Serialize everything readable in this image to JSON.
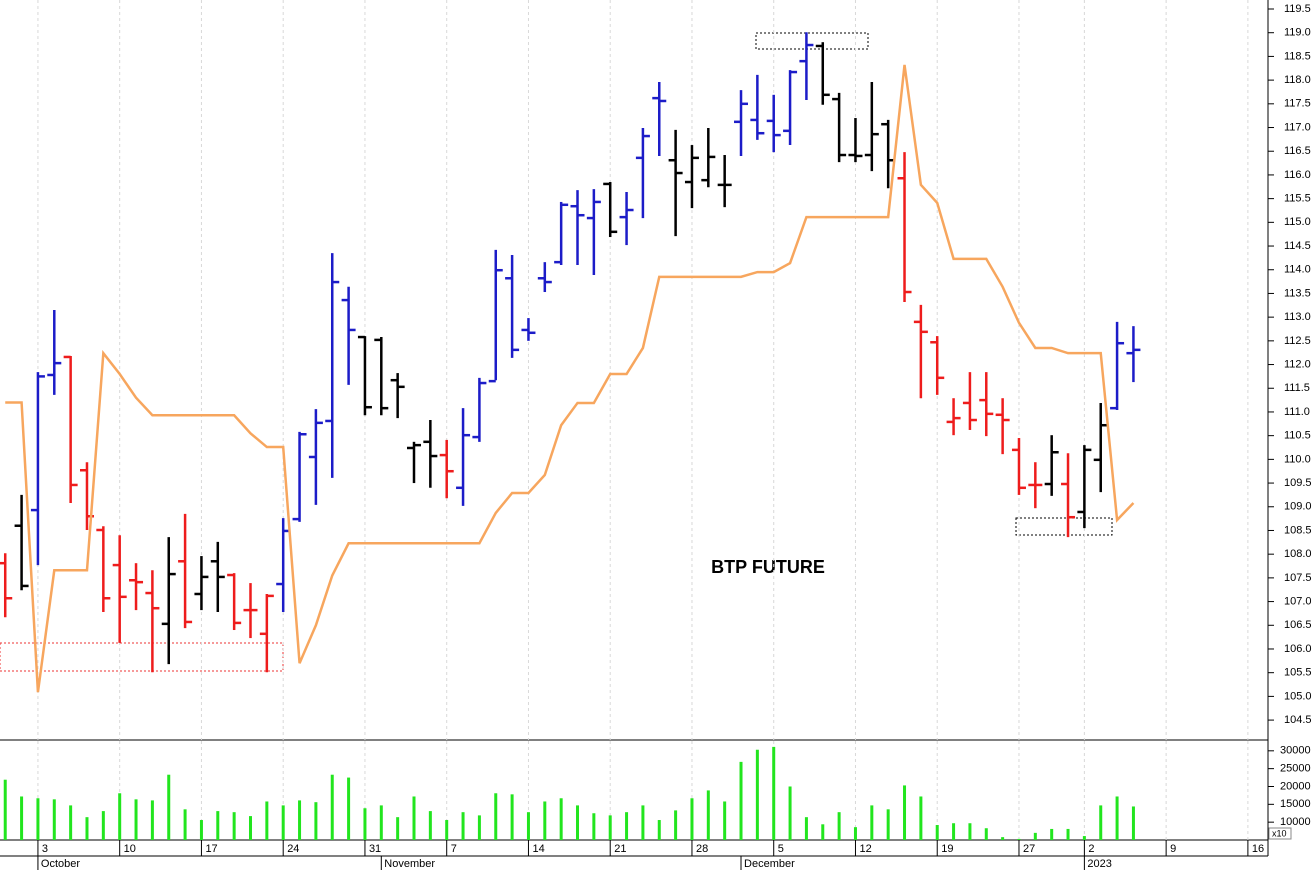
{
  "chart_data": [
    {
      "type": "ohlc",
      "title": "BTP FUTURE",
      "x": [
        -2,
        -1,
        0,
        1,
        2,
        3,
        4,
        5,
        6,
        7,
        8,
        9,
        10,
        11,
        12,
        13,
        14,
        15,
        16,
        17,
        18,
        19,
        20,
        21,
        22,
        23,
        24,
        25,
        26,
        27,
        28,
        29,
        30,
        31,
        32,
        33,
        34,
        35,
        36,
        37,
        38,
        39,
        40,
        41,
        42,
        43,
        44,
        45,
        46,
        47,
        48,
        49,
        50,
        51,
        52,
        53,
        54,
        55,
        56,
        57,
        58,
        59,
        60,
        61,
        62,
        63,
        64,
        65,
        66,
        67
      ],
      "open": [
        107.81,
        108.6,
        108.93,
        111.78,
        112.16,
        109.77,
        108.51,
        107.77,
        107.45,
        107.18,
        106.53,
        107.85,
        107.16,
        107.85,
        107.56,
        106.82,
        106.32,
        107.37,
        108.74,
        110.05,
        110.81,
        113.36,
        112.58,
        112.52,
        111.67,
        110.24,
        110.37,
        110.09,
        109.4,
        110.47,
        111.65,
        113.82,
        112.73,
        113.82,
        114.16,
        115.34,
        115.09,
        115.81,
        115.11,
        116.36,
        117.62,
        116.31,
        115.85,
        115.89,
        115.79,
        117.12,
        117.16,
        117.14,
        116.93,
        118.4,
        118.72,
        117.6,
        116.42,
        116.42,
        117.07,
        115.93,
        112.9,
        112.47,
        110.79,
        111.19,
        111.25,
        110.94,
        110.2,
        109.46,
        109.48,
        109.48,
        108.89,
        109.99,
        111.08,
        112.24
      ],
      "high": [
        108.02,
        109.25,
        111.84,
        113.15,
        112.18,
        109.94,
        108.59,
        108.4,
        107.81,
        107.66,
        108.36,
        108.85,
        107.96,
        108.26,
        107.6,
        107.39,
        107.16,
        108.76,
        110.58,
        111.06,
        114.35,
        113.64,
        112.6,
        112.58,
        111.82,
        110.37,
        110.83,
        110.41,
        111.08,
        111.72,
        114.42,
        114.31,
        112.98,
        114.16,
        115.43,
        115.68,
        115.7,
        115.85,
        115.64,
        116.99,
        117.96,
        116.95,
        116.63,
        116.99,
        116.42,
        117.79,
        118.11,
        117.69,
        118.21,
        119.01,
        118.8,
        117.73,
        117.2,
        117.96,
        117.16,
        116.48,
        113.26,
        112.6,
        111.29,
        111.84,
        111.84,
        111.29,
        110.45,
        109.94,
        110.51,
        110.13,
        110.3,
        111.19,
        112.9,
        112.81
      ],
      "low": [
        106.67,
        107.24,
        107.77,
        111.36,
        109.08,
        108.51,
        106.78,
        106.13,
        106.82,
        105.51,
        105.68,
        106.44,
        106.82,
        106.78,
        106.4,
        106.23,
        105.51,
        106.78,
        108.68,
        109.04,
        109.61,
        111.57,
        110.93,
        110.93,
        110.87,
        109.5,
        109.4,
        109.18,
        109.02,
        110.37,
        111.67,
        112.14,
        112.5,
        113.53,
        114.1,
        114.1,
        113.89,
        114.69,
        114.52,
        115.09,
        116.4,
        114.71,
        115.3,
        115.74,
        115.32,
        116.4,
        116.74,
        116.48,
        116.63,
        117.58,
        117.48,
        116.27,
        116.27,
        116.08,
        115.72,
        113.32,
        111.29,
        111.36,
        110.51,
        110.62,
        110.49,
        110.11,
        109.25,
        108.97,
        109.23,
        108.36,
        108.55,
        109.31,
        111.04,
        111.63
      ],
      "close": [
        107.07,
        107.33,
        111.75,
        112.03,
        109.46,
        108.8,
        107.07,
        107.1,
        107.41,
        106.86,
        107.58,
        106.57,
        107.52,
        107.52,
        106.55,
        106.82,
        107.12,
        108.49,
        110.53,
        110.77,
        113.74,
        112.73,
        111.1,
        111.08,
        111.53,
        110.3,
        110.07,
        109.75,
        110.51,
        111.61,
        113.99,
        112.31,
        112.67,
        113.74,
        115.37,
        115.15,
        115.43,
        114.8,
        115.26,
        116.82,
        117.56,
        116.04,
        116.36,
        116.38,
        115.79,
        117.5,
        116.88,
        116.84,
        118.17,
        118.74,
        117.69,
        116.42,
        116.4,
        116.86,
        116.31,
        113.53,
        112.69,
        111.72,
        110.87,
        110.83,
        110.96,
        110.83,
        109.4,
        109.46,
        110.15,
        108.78,
        110.2,
        110.72,
        112.45,
        112.31
      ],
      "bar_colors": [
        "#ee1c1c",
        "#000000",
        "#1c1cc8",
        "#1c1cc8",
        "#ee1c1c",
        "#ee1c1c",
        "#ee1c1c",
        "#ee1c1c",
        "#ee1c1c",
        "#ee1c1c",
        "#000000",
        "#ee1c1c",
        "#000000",
        "#000000",
        "#ee1c1c",
        "#ee1c1c",
        "#ee1c1c",
        "#1c1cc8",
        "#1c1cc8",
        "#1c1cc8",
        "#1c1cc8",
        "#1c1cc8",
        "#000000",
        "#000000",
        "#000000",
        "#000000",
        "#000000",
        "#ee1c1c",
        "#1c1cc8",
        "#1c1cc8",
        "#1c1cc8",
        "#1c1cc8",
        "#1c1cc8",
        "#1c1cc8",
        "#1c1cc8",
        "#1c1cc8",
        "#1c1cc8",
        "#000000",
        "#1c1cc8",
        "#1c1cc8",
        "#1c1cc8",
        "#000000",
        "#000000",
        "#000000",
        "#000000",
        "#1c1cc8",
        "#1c1cc8",
        "#1c1cc8",
        "#1c1cc8",
        "#1c1cc8",
        "#000000",
        "#000000",
        "#000000",
        "#000000",
        "#000000",
        "#ee1c1c",
        "#ee1c1c",
        "#ee1c1c",
        "#ee1c1c",
        "#ee1c1c",
        "#ee1c1c",
        "#ee1c1c",
        "#ee1c1c",
        "#ee1c1c",
        "#000000",
        "#ee1c1c",
        "#000000",
        "#000000",
        "#1c1cc8",
        "#1c1cc8"
      ],
      "line": {
        "color": "#f7a65e",
        "values": [
          111.2,
          111.2,
          105.09,
          107.66,
          107.66,
          107.66,
          112.24,
          111.8,
          111.3,
          110.93,
          110.93,
          110.93,
          110.93,
          110.93,
          110.93,
          110.55,
          110.26,
          110.26,
          105.7,
          106.5,
          107.55,
          108.23,
          108.23,
          108.23,
          108.23,
          108.23,
          108.23,
          108.23,
          108.23,
          108.23,
          108.87,
          109.29,
          109.29,
          109.67,
          110.72,
          111.19,
          111.19,
          111.8,
          111.8,
          112.35,
          113.85,
          113.85,
          113.85,
          113.85,
          113.85,
          113.85,
          113.95,
          113.95,
          114.14,
          115.11,
          115.11,
          115.11,
          115.11,
          115.11,
          115.11,
          118.32,
          115.79,
          115.41,
          114.23,
          114.23,
          114.23,
          113.64,
          112.88,
          112.35,
          112.35,
          112.24,
          112.24,
          112.24,
          108.72,
          109.08
        ]
      },
      "xlim": [
        -2.32,
        75.23
      ],
      "ylim": [
        104.08,
        119.69
      ],
      "yticks": [
        {
          "value": 104.5,
          "label": "104.5"
        },
        {
          "value": 105,
          "label": "105.0"
        },
        {
          "value": 105.5,
          "label": "105.5"
        },
        {
          "value": 106,
          "label": "106.0"
        },
        {
          "value": 106.5,
          "label": "106.5"
        },
        {
          "value": 107,
          "label": "107.0"
        },
        {
          "value": 107.5,
          "label": "107.5"
        },
        {
          "value": 108,
          "label": "108.0"
        },
        {
          "value": 108.5,
          "label": "108.5"
        },
        {
          "value": 109,
          "label": "109.0"
        },
        {
          "value": 109.5,
          "label": "109.5"
        },
        {
          "value": 110,
          "label": "110.0"
        },
        {
          "value": 110.5,
          "label": "110.5"
        },
        {
          "value": 111,
          "label": "111.0"
        },
        {
          "value": 111.5,
          "label": "111.5"
        },
        {
          "value": 112,
          "label": "112.0"
        },
        {
          "value": 112.5,
          "label": "112.5"
        },
        {
          "value": 113,
          "label": "113.0"
        },
        {
          "value": 113.5,
          "label": "113.5"
        },
        {
          "value": 114,
          "label": "114.0"
        },
        {
          "value": 114.5,
          "label": "114.5"
        },
        {
          "value": 115,
          "label": "115.0"
        },
        {
          "value": 115.5,
          "label": "115.5"
        },
        {
          "value": 116,
          "label": "116.0"
        },
        {
          "value": 116.5,
          "label": "116.5"
        },
        {
          "value": 117,
          "label": "117.0"
        },
        {
          "value": 117.5,
          "label": "117.5"
        },
        {
          "value": 118,
          "label": "118.0"
        },
        {
          "value": 118.5,
          "label": "118.5"
        },
        {
          "value": 119,
          "label": "119.0"
        },
        {
          "value": 119.5,
          "label": "119.5"
        }
      ],
      "xticks": [
        {
          "value": 0,
          "label": "3"
        },
        {
          "value": 5,
          "label": "10"
        },
        {
          "value": 10,
          "label": "17"
        },
        {
          "value": 15,
          "label": "24"
        },
        {
          "value": 20,
          "label": "31"
        },
        {
          "value": 25,
          "label": "7"
        },
        {
          "value": 30,
          "label": "14"
        },
        {
          "value": 35,
          "label": "21"
        },
        {
          "value": 40,
          "label": "28"
        },
        {
          "value": 45,
          "label": "5"
        },
        {
          "value": 50,
          "label": "12"
        },
        {
          "value": 55,
          "label": "19"
        },
        {
          "value": 60,
          "label": "27"
        },
        {
          "value": 64,
          "label": "2"
        },
        {
          "value": 69,
          "label": "9"
        },
        {
          "value": 74,
          "label": "16"
        }
      ],
      "month_labels": [
        {
          "value": 0,
          "label": "October"
        },
        {
          "value": 21,
          "label": "November"
        },
        {
          "value": 43,
          "label": "December"
        },
        {
          "value": 64,
          "label": "2023"
        }
      ],
      "grid": true
    },
    {
      "type": "bar",
      "note": "x10",
      "color": "#22e51e",
      "values": [
        21900,
        17200,
        16700,
        16400,
        14700,
        11400,
        13100,
        18100,
        16400,
        16100,
        23300,
        13600,
        10600,
        13100,
        12800,
        11700,
        15800,
        14700,
        16100,
        15600,
        23300,
        22500,
        13900,
        14700,
        11400,
        17200,
        13100,
        10600,
        12800,
        11900,
        18100,
        17800,
        12800,
        15800,
        16700,
        14700,
        12500,
        11900,
        12800,
        14700,
        10600,
        13300,
        16700,
        18900,
        15800,
        26900,
        30300,
        31100,
        20000,
        11400,
        9400,
        12800,
        8600,
        14700,
        13600,
        20300,
        17200,
        9200,
        9700,
        9700,
        8300,
        5800,
        5300,
        7000,
        8100,
        8100,
        6100,
        14700,
        17200,
        14400
      ],
      "ylim": [
        5000,
        32750
      ],
      "yticks": [
        10000,
        15000,
        20000,
        25000,
        30000
      ]
    }
  ]
}
